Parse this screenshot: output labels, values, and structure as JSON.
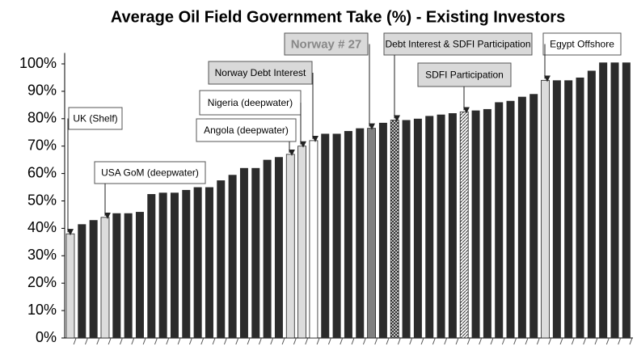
{
  "chart_data": {
    "type": "bar",
    "title": "Average Oil Field Government Take (%) - Existing Investors",
    "categories": [
      null,
      null,
      null,
      null,
      null,
      null,
      null,
      null,
      null,
      null,
      null,
      null,
      null,
      null,
      null,
      null,
      null,
      null,
      null,
      null,
      null,
      null,
      null,
      null,
      null,
      null,
      null,
      null,
      null,
      null,
      null,
      null,
      null,
      null,
      null,
      null,
      null,
      null,
      null,
      null,
      null,
      null,
      null,
      null,
      null,
      null,
      null,
      null,
      null
    ],
    "values": [
      38,
      41.5,
      43,
      44,
      45.5,
      45.5,
      46,
      52.5,
      53,
      53,
      54,
      55,
      55,
      57.5,
      59.5,
      62,
      62,
      65,
      66,
      67,
      70,
      72,
      74.5,
      74.5,
      75.5,
      76.5,
      76.5,
      78.5,
      79.5,
      79.5,
      80,
      81,
      81.5,
      82,
      82.5,
      83,
      83.5,
      86,
      86.5,
      88,
      89,
      94,
      94,
      94,
      95,
      97.5,
      100.5,
      100.5,
      100.5
    ],
    "fills": [
      "light",
      "dark",
      "dark",
      "light",
      "dark",
      "dark",
      "dark",
      "dark",
      "dark",
      "dark",
      "dark",
      "dark",
      "dark",
      "dark",
      "dark",
      "dark",
      "dark",
      "dark",
      "dark",
      "light",
      "light",
      "white",
      "dark",
      "dark",
      "dark",
      "dark",
      "gray",
      "dark",
      "crosshatch",
      "dark",
      "dark",
      "dark",
      "dark",
      "dark",
      "hatch",
      "dark",
      "dark",
      "dark",
      "dark",
      "dark",
      "dark",
      "light",
      "dark",
      "dark",
      "dark",
      "dark",
      "dark",
      "dark",
      "dark"
    ],
    "ylim": [
      0,
      104
    ],
    "yticks": [
      {
        "value": 0,
        "label": "0%"
      },
      {
        "value": 10,
        "label": "10%"
      },
      {
        "value": 20,
        "label": "20%"
      },
      {
        "value": 30,
        "label": "30%"
      },
      {
        "value": 40,
        "label": "40%"
      },
      {
        "value": 50,
        "label": "50%"
      },
      {
        "value": 60,
        "label": "60%"
      },
      {
        "value": 70,
        "label": "70%"
      },
      {
        "value": 80,
        "label": "80%"
      },
      {
        "value": 90,
        "label": "90%"
      },
      {
        "value": 100,
        "label": "100%"
      }
    ],
    "annotations": [
      "UK (Shelf)",
      "USA GoM (deepwater)",
      "Angola (deepwater)",
      "Nigeria (deepwater)",
      "Norway Debt Interest",
      "Norway # 27",
      "Debt Interest & SDFI Participation",
      "SDFI Participation",
      "Egypt Offshore"
    ]
  }
}
